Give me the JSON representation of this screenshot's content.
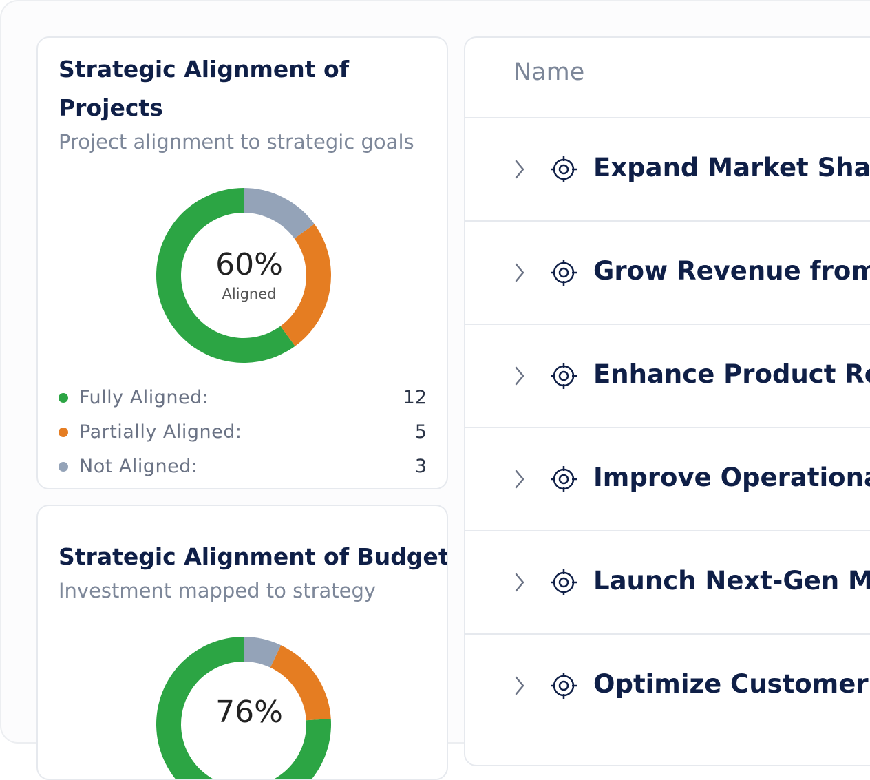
{
  "cards": [
    {
      "title": "Strategic Alignment of Projects",
      "subtitle": "Project alignment to strategic goals",
      "center_value": "60%",
      "center_label": "Aligned",
      "colors": [
        "#2ca544",
        "#e57d22",
        "#94a3b8"
      ],
      "legend": [
        {
          "label": "Fully Aligned:",
          "value": 12
        },
        {
          "label": "Partially Aligned:",
          "value": 5
        },
        {
          "label": "Not Aligned:",
          "value": 3
        }
      ]
    },
    {
      "title": "Strategic Alignment of Budget",
      "subtitle": "Investment mapped to strategy",
      "center_value": "76%",
      "colors": [
        "#2ca544",
        "#e57d22",
        "#94a3b8"
      ],
      "segments": [
        76,
        17,
        7
      ]
    }
  ],
  "table": {
    "header": "Name",
    "rows": [
      "Expand Market Share",
      "Grow Revenue from E",
      "Enhance Product Reli",
      "Improve Operational",
      "Launch Next-Gen Mo",
      "Optimize Customer S"
    ]
  }
}
